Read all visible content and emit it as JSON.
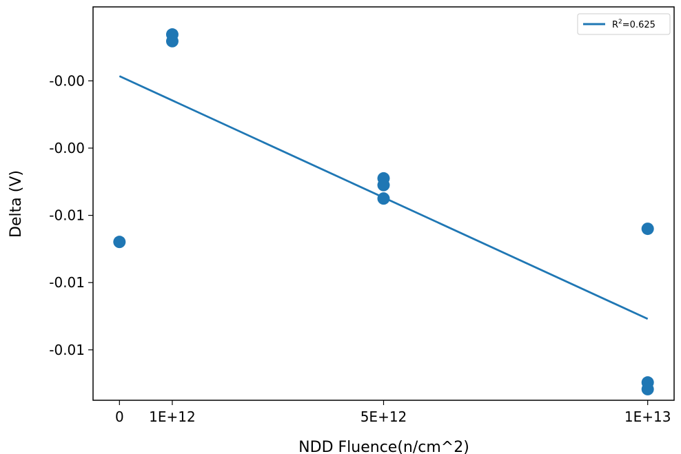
{
  "chart_data": {
    "type": "scatter",
    "xlabel": "NDD Fluence(n/cm^2)",
    "ylabel": "Delta (V)",
    "x_ticks": [
      {
        "value": 0,
        "label": "0"
      },
      {
        "value": 1000000000000.0,
        "label": "1E+12"
      },
      {
        "value": 5000000000000.0,
        "label": "5E+12"
      },
      {
        "value": 10000000000000.0,
        "label": "1E+13"
      }
    ],
    "y_ticks": [
      {
        "value": -0.002,
        "label": "-0.00"
      },
      {
        "value": -0.004,
        "label": "-0.00"
      },
      {
        "value": -0.006,
        "label": "-0.01"
      },
      {
        "value": -0.008,
        "label": "-0.01"
      },
      {
        "value": -0.01,
        "label": "-0.01"
      }
    ],
    "xlim": [
      -500000000000.0,
      10500000000000.0
    ],
    "ylim": [
      -0.0115,
      0.0002
    ],
    "series": [
      {
        "type": "scatter",
        "color": "#1f77b4",
        "x": [
          0,
          1000000000000.0,
          1000000000000.0,
          5000000000000.0,
          5000000000000.0,
          5000000000000.0,
          10000000000000.0,
          10000000000000.0,
          10000000000000.0
        ],
        "y": [
          -0.00679,
          -0.00082,
          -0.00062,
          -0.0049,
          -0.0051,
          -0.0055,
          -0.0064,
          -0.01097,
          -0.01117
        ]
      },
      {
        "type": "line",
        "color": "#1f77b4",
        "x": [
          0,
          10000000000000.0
        ],
        "y": [
          -0.00186,
          -0.00908
        ]
      }
    ],
    "legend": {
      "position": "top-right",
      "entries": [
        {
          "base": "R",
          "sup": "2",
          "rest": "=0.625"
        }
      ]
    }
  }
}
